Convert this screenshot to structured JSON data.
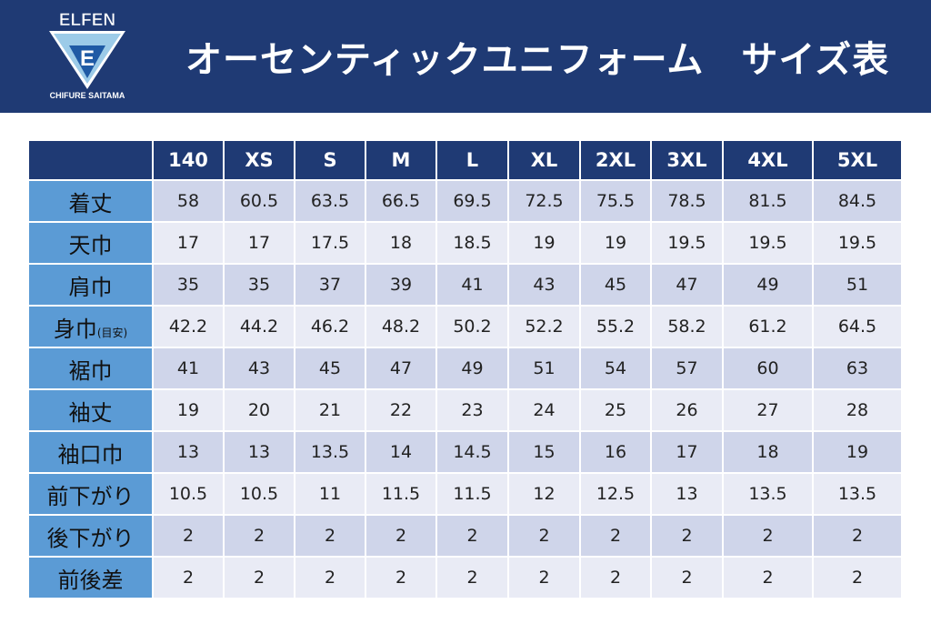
{
  "colors": {
    "header_bg": "#1f3a74",
    "label_bg": "#5b9bd5",
    "row_odd": "#cfd5ea",
    "row_even": "#e9ebf5",
    "logo_light": "#9ccbe8",
    "logo_dark": "#1f5aa5"
  },
  "logo": {
    "top": "ELFEN",
    "letter": "E",
    "bottom": "CHIFURE SAITAMA"
  },
  "title": "オーセンティックユニフォーム　サイズ表",
  "table": {
    "columns": [
      "140",
      "XS",
      "S",
      "M",
      "L",
      "XL",
      "2XL",
      "3XL",
      "4XL",
      "5XL"
    ],
    "rows": [
      {
        "label": "着丈",
        "sub": "",
        "values": [
          "58",
          "60.5",
          "63.5",
          "66.5",
          "69.5",
          "72.5",
          "75.5",
          "78.5",
          "81.5",
          "84.5"
        ]
      },
      {
        "label": "天巾",
        "sub": "",
        "values": [
          "17",
          "17",
          "17.5",
          "18",
          "18.5",
          "19",
          "19",
          "19.5",
          "19.5",
          "19.5"
        ]
      },
      {
        "label": "肩巾",
        "sub": "",
        "values": [
          "35",
          "35",
          "37",
          "39",
          "41",
          "43",
          "45",
          "47",
          "49",
          "51"
        ]
      },
      {
        "label": "身巾",
        "sub": "(目安)",
        "values": [
          "42.2",
          "44.2",
          "46.2",
          "48.2",
          "50.2",
          "52.2",
          "55.2",
          "58.2",
          "61.2",
          "64.5"
        ]
      },
      {
        "label": "裾巾",
        "sub": "",
        "values": [
          "41",
          "43",
          "45",
          "47",
          "49",
          "51",
          "54",
          "57",
          "60",
          "63"
        ]
      },
      {
        "label": "袖丈",
        "sub": "",
        "values": [
          "19",
          "20",
          "21",
          "22",
          "23",
          "24",
          "25",
          "26",
          "27",
          "28"
        ]
      },
      {
        "label": "袖口巾",
        "sub": "",
        "values": [
          "13",
          "13",
          "13.5",
          "14",
          "14.5",
          "15",
          "16",
          "17",
          "18",
          "19"
        ]
      },
      {
        "label": "前下がり",
        "sub": "",
        "values": [
          "10.5",
          "10.5",
          "11",
          "11.5",
          "11.5",
          "12",
          "12.5",
          "13",
          "13.5",
          "13.5"
        ]
      },
      {
        "label": "後下がり",
        "sub": "",
        "values": [
          "2",
          "2",
          "2",
          "2",
          "2",
          "2",
          "2",
          "2",
          "2",
          "2"
        ]
      },
      {
        "label": "前後差",
        "sub": "",
        "values": [
          "2",
          "2",
          "2",
          "2",
          "2",
          "2",
          "2",
          "2",
          "2",
          "2"
        ]
      }
    ]
  }
}
